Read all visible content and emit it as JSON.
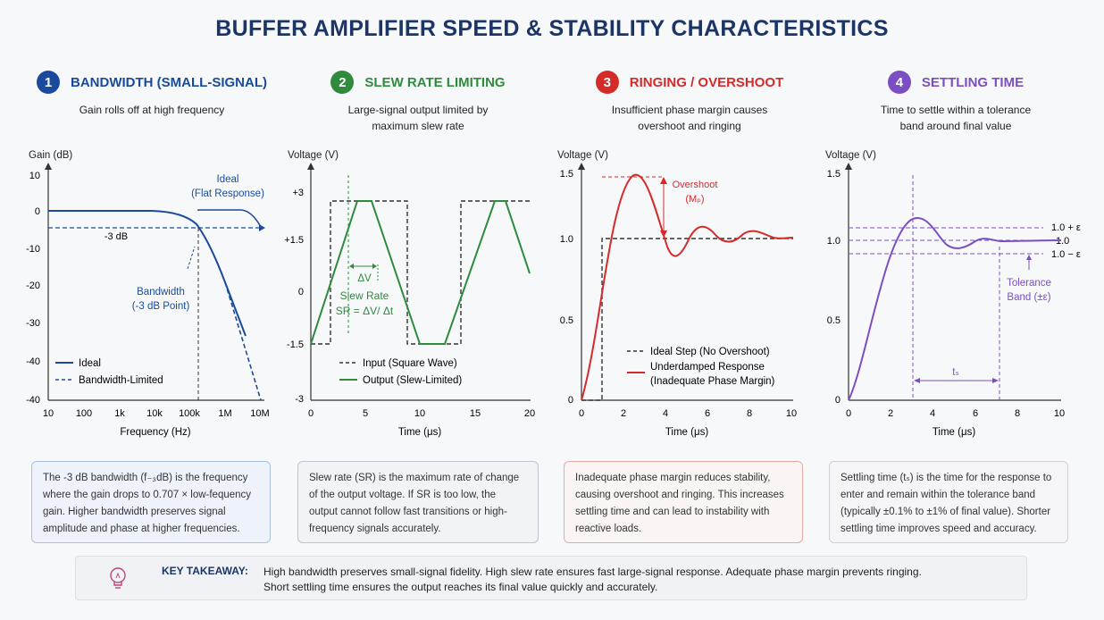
{
  "title": "BUFFER AMPLIFIER SPEED & STABILITY CHARACTERISTICS",
  "colors": {
    "blue": "#1a4a9c",
    "green": "#2e8b3e",
    "red": "#d42a2a",
    "purple": "#7b4fc2",
    "navy": "#1c3567"
  },
  "panels": [
    {
      "number": "1",
      "heading": "BANDWIDTH (SMALL-SIGNAL)",
      "subtitle": "Gain rolls off at high frequency",
      "ylabel": "Gain (dB)",
      "xlabel": "Frequency (Hz)",
      "xticks": [
        "10",
        "100",
        "1k",
        "10k",
        "100k",
        "1M",
        "10M"
      ],
      "yticks": [
        "10",
        "0",
        "-10",
        "-20",
        "-30",
        "-40",
        "-40"
      ],
      "annotations": {
        "minus3db": "-3 dB",
        "ideal_line1": "Ideal",
        "ideal_line2": "(Flat Response)",
        "bw_line1": "Bandwidth",
        "bw_line2": "(-3 dB Point)"
      },
      "legend": [
        "Ideal",
        "Bandwidth-Limited"
      ],
      "description": "The -3 dB bandwidth (f₋₃dB) is the frequency where the gain drops to 0.707 × low-fequency gain. Higher bandwidth preserves signal amplitude and phase at higher frequencies."
    },
    {
      "number": "2",
      "heading": "SLEW RATE LIMITING",
      "subtitle_line1": "Large-signal output limited by",
      "subtitle_line2": "maximum slew rate",
      "ylabel": "Voltage (V)",
      "xlabel": "Time (μs)",
      "xticks": [
        "0",
        "5",
        "10",
        "15",
        "20"
      ],
      "yticks": [
        "+3",
        "+1.5",
        "0",
        "-1.5",
        "-3"
      ],
      "annotations": {
        "dv": "ΔV",
        "sr_line1": "Slew Rate",
        "sr_line2": "SR = ΔV/ Δt"
      },
      "legend": [
        "Input (Square Wave)",
        "Output (Slew-Limited)"
      ],
      "description": "Slew rate (SR) is the maximum rate of change of the output voltage. If SR is too low, the output cannot follow fast transitions or high-frequency signals accurately."
    },
    {
      "number": "3",
      "heading": "RINGING / OVERSHOOT",
      "subtitle_line1": "Insufficient phase margin causes",
      "subtitle_line2": "overshoot and ringing",
      "ylabel": "Voltage (V)",
      "xlabel": "Time (μs)",
      "xticks": [
        "0",
        "2",
        "4",
        "6",
        "8",
        "10"
      ],
      "yticks": [
        "1.5",
        "1.0",
        "0.5",
        "0"
      ],
      "annotations": {
        "overshoot": "Overshoot",
        "mp": "(Mₚ)"
      },
      "legend": [
        "Ideal Step (No Overshoot)",
        "Underdamped Response",
        "(Inadequate Phase Margin)"
      ],
      "description": "Inadequate phase margin reduces stability, causing overshoot and ringing. This increases settling time and can lead to instability with reactive loads."
    },
    {
      "number": "4",
      "heading": "SETTLING TIME",
      "subtitle_line1": "Time to settle within a tolerance",
      "subtitle_line2": "band around final value",
      "ylabel": "Voltage (V)",
      "xlabel": "Time (μs)",
      "xticks": [
        "0",
        "2",
        "4",
        "6",
        "8",
        "10"
      ],
      "yticks": [
        "1.5",
        "1.0",
        "0.5",
        "0"
      ],
      "annotations": {
        "upper": "1.0 + ε",
        "mid": "1.0",
        "lower": "1.0 − ε",
        "tol_line1": "Tolerance",
        "tol_line2": "Band (±ε)",
        "ts": "tₛ"
      },
      "description": "Settling time (tₛ) is the time for the response to enter and remain within the tolerance band (typically ±0.1% to ±1% of final value). Shorter settling time improves speed and accuracy."
    }
  ],
  "takeaway": {
    "label": "KEY TAKEAWAY:",
    "line1": "High bandwidth preserves small-signal fidelity. High slew rate ensures fast large-signal response. Adequate phase margin prevents ringing.",
    "line2": "Short settling time ensures the output reaches its final value quickly and accurately."
  }
}
